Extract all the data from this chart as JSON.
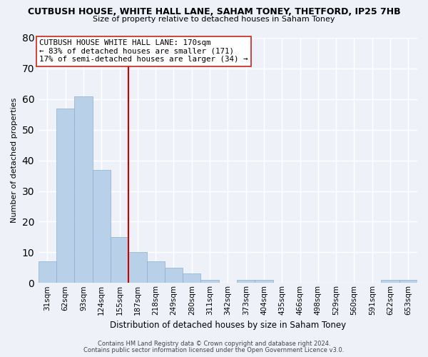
{
  "title_line1": "CUTBUSH HOUSE, WHITE HALL LANE, SAHAM TONEY, THETFORD, IP25 7HB",
  "title_line2": "Size of property relative to detached houses in Saham Toney",
  "xlabel": "Distribution of detached houses by size in Saham Toney",
  "ylabel": "Number of detached properties",
  "categories": [
    "31sqm",
    "62sqm",
    "93sqm",
    "124sqm",
    "155sqm",
    "187sqm",
    "218sqm",
    "249sqm",
    "280sqm",
    "311sqm",
    "342sqm",
    "373sqm",
    "404sqm",
    "435sqm",
    "466sqm",
    "498sqm",
    "529sqm",
    "560sqm",
    "591sqm",
    "622sqm",
    "653sqm"
  ],
  "values": [
    7,
    57,
    61,
    37,
    15,
    10,
    7,
    5,
    3,
    1,
    0,
    1,
    1,
    0,
    0,
    0,
    0,
    0,
    0,
    1,
    1
  ],
  "bar_color": "#b8d0e8",
  "reference_line_color": "#cc0000",
  "reference_line_x": 4.5,
  "ylim": [
    0,
    80
  ],
  "yticks": [
    0,
    10,
    20,
    30,
    40,
    50,
    60,
    70,
    80
  ],
  "annotation_title": "CUTBUSH HOUSE WHITE HALL LANE: 170sqm",
  "annotation_line1": "← 83% of detached houses are smaller (171)",
  "annotation_line2": "17% of semi-detached houses are larger (34) →",
  "footer_line1": "Contains HM Land Registry data © Crown copyright and database right 2024.",
  "footer_line2": "Contains public sector information licensed under the Open Government Licence v3.0.",
  "background_color": "#eef2f8",
  "plot_bg_color": "#eef2f8",
  "grid_color": "#ffffff"
}
